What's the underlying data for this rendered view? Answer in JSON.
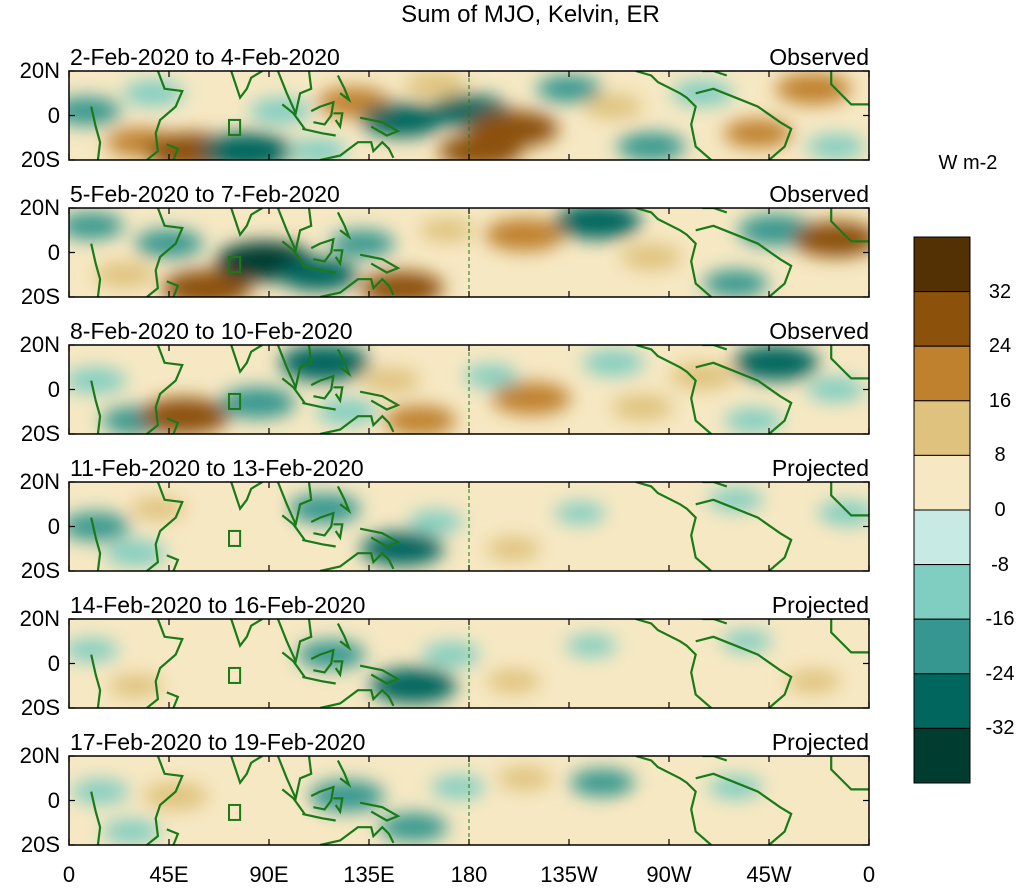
{
  "chart_data": {
    "type": "heatmap",
    "title": "Sum of MJO, Kelvin, ER",
    "xlabel": "",
    "ylabel": "",
    "x_ticks": [
      "0",
      "45E",
      "90E",
      "135E",
      "180",
      "135W",
      "90W",
      "45W",
      "0"
    ],
    "y_ticks": [
      "20N",
      "0",
      "20S"
    ],
    "xlim": [
      0,
      360
    ],
    "ylim": [
      -20,
      20
    ],
    "colorbar": {
      "units": "W m-2",
      "levels": [
        "32",
        "24",
        "16",
        "8",
        "0",
        "-8",
        "-16",
        "-24",
        "-32"
      ],
      "colors": [
        "#543005",
        "#8c510a",
        "#bf812d",
        "#dfc27d",
        "#f6e8c3",
        "#c7eae5",
        "#80cdc1",
        "#35978f",
        "#01665e",
        "#003c30"
      ]
    },
    "panels": [
      {
        "date_range": "2-Feb-2020 to 4-Feb-2020",
        "status": "Observed",
        "anomalies": [
          {
            "lon": 8,
            "lat": 2,
            "v": -18
          },
          {
            "lon": 38,
            "lat": 10,
            "v": -14
          },
          {
            "lon": 32,
            "lat": -12,
            "v": 18
          },
          {
            "lon": 55,
            "lat": -16,
            "v": 30
          },
          {
            "lon": 80,
            "lat": -16,
            "v": -30
          },
          {
            "lon": 95,
            "lat": 2,
            "v": -14
          },
          {
            "lon": 112,
            "lat": -16,
            "v": -12
          },
          {
            "lon": 128,
            "lat": 6,
            "v": 20
          },
          {
            "lon": 150,
            "lat": -2,
            "v": -26
          },
          {
            "lon": 165,
            "lat": 14,
            "v": 14
          },
          {
            "lon": 180,
            "lat": 2,
            "v": -24
          },
          {
            "lon": 200,
            "lat": -6,
            "v": 30
          },
          {
            "lon": 185,
            "lat": -16,
            "v": 26
          },
          {
            "lon": 225,
            "lat": 12,
            "v": -16
          },
          {
            "lon": 245,
            "lat": 4,
            "v": 12
          },
          {
            "lon": 262,
            "lat": -14,
            "v": -18
          },
          {
            "lon": 285,
            "lat": 10,
            "v": -14
          },
          {
            "lon": 310,
            "lat": -8,
            "v": 18
          },
          {
            "lon": 335,
            "lat": 12,
            "v": 22
          },
          {
            "lon": 345,
            "lat": -14,
            "v": -12
          }
        ]
      },
      {
        "date_range": "5-Feb-2020 to 7-Feb-2020",
        "status": "Observed",
        "anomalies": [
          {
            "lon": 10,
            "lat": 12,
            "v": -16
          },
          {
            "lon": 25,
            "lat": -10,
            "v": 14
          },
          {
            "lon": 45,
            "lat": 4,
            "v": -18
          },
          {
            "lon": 62,
            "lat": -16,
            "v": 30
          },
          {
            "lon": 88,
            "lat": -4,
            "v": -34
          },
          {
            "lon": 112,
            "lat": -10,
            "v": -24
          },
          {
            "lon": 132,
            "lat": 4,
            "v": -16
          },
          {
            "lon": 150,
            "lat": -16,
            "v": 26
          },
          {
            "lon": 170,
            "lat": 10,
            "v": 10
          },
          {
            "lon": 205,
            "lat": 8,
            "v": 24
          },
          {
            "lon": 238,
            "lat": 14,
            "v": -28
          },
          {
            "lon": 262,
            "lat": -2,
            "v": 14
          },
          {
            "lon": 300,
            "lat": -14,
            "v": -16
          },
          {
            "lon": 318,
            "lat": 10,
            "v": -22
          },
          {
            "lon": 345,
            "lat": 6,
            "v": 28
          }
        ]
      },
      {
        "date_range": "8-Feb-2020 to 10-Feb-2020",
        "status": "Observed",
        "anomalies": [
          {
            "lon": 12,
            "lat": 4,
            "v": -14
          },
          {
            "lon": 30,
            "lat": -14,
            "v": -18
          },
          {
            "lon": 52,
            "lat": -12,
            "v": 30
          },
          {
            "lon": 85,
            "lat": -6,
            "v": -22
          },
          {
            "lon": 115,
            "lat": 12,
            "v": -30
          },
          {
            "lon": 125,
            "lat": -10,
            "v": -14
          },
          {
            "lon": 145,
            "lat": 4,
            "v": 12
          },
          {
            "lon": 158,
            "lat": -14,
            "v": 20
          },
          {
            "lon": 190,
            "lat": 6,
            "v": -10
          },
          {
            "lon": 208,
            "lat": -4,
            "v": 24
          },
          {
            "lon": 245,
            "lat": 12,
            "v": -14
          },
          {
            "lon": 258,
            "lat": -8,
            "v": 14
          },
          {
            "lon": 285,
            "lat": 6,
            "v": 16
          },
          {
            "lon": 308,
            "lat": -14,
            "v": -12
          },
          {
            "lon": 318,
            "lat": 12,
            "v": -28
          },
          {
            "lon": 345,
            "lat": 0,
            "v": -12
          }
        ]
      },
      {
        "date_range": "11-Feb-2020 to 13-Feb-2020",
        "status": "Projected",
        "anomalies": [
          {
            "lon": 12,
            "lat": 0,
            "v": -18
          },
          {
            "lon": 30,
            "lat": -12,
            "v": -14
          },
          {
            "lon": 40,
            "lat": 8,
            "v": 10
          },
          {
            "lon": 80,
            "lat": 4,
            "v": 8
          },
          {
            "lon": 115,
            "lat": 8,
            "v": -20
          },
          {
            "lon": 150,
            "lat": -10,
            "v": -26
          },
          {
            "lon": 165,
            "lat": 2,
            "v": -10
          },
          {
            "lon": 200,
            "lat": -10,
            "v": 10
          },
          {
            "lon": 230,
            "lat": 6,
            "v": -8
          },
          {
            "lon": 265,
            "lat": -6,
            "v": 8
          },
          {
            "lon": 300,
            "lat": 12,
            "v": -10
          },
          {
            "lon": 330,
            "lat": -8,
            "v": 8
          },
          {
            "lon": 350,
            "lat": 6,
            "v": -12
          }
        ]
      },
      {
        "date_range": "14-Feb-2020 to 16-Feb-2020",
        "status": "Projected",
        "anomalies": [
          {
            "lon": 10,
            "lat": 6,
            "v": -10
          },
          {
            "lon": 30,
            "lat": -10,
            "v": 10
          },
          {
            "lon": 60,
            "lat": 4,
            "v": 8
          },
          {
            "lon": 118,
            "lat": 4,
            "v": -18
          },
          {
            "lon": 155,
            "lat": -10,
            "v": -28
          },
          {
            "lon": 172,
            "lat": 4,
            "v": -12
          },
          {
            "lon": 200,
            "lat": -8,
            "v": 10
          },
          {
            "lon": 235,
            "lat": 8,
            "v": -8
          },
          {
            "lon": 270,
            "lat": -10,
            "v": 8
          },
          {
            "lon": 305,
            "lat": 10,
            "v": -8
          },
          {
            "lon": 335,
            "lat": -8,
            "v": 10
          }
        ]
      },
      {
        "date_range": "17-Feb-2020 to 19-Feb-2020",
        "status": "Projected",
        "anomalies": [
          {
            "lon": 14,
            "lat": 4,
            "v": -12
          },
          {
            "lon": 28,
            "lat": -14,
            "v": -12
          },
          {
            "lon": 48,
            "lat": 2,
            "v": 16
          },
          {
            "lon": 90,
            "lat": -6,
            "v": 8
          },
          {
            "lon": 125,
            "lat": 2,
            "v": -22
          },
          {
            "lon": 155,
            "lat": -12,
            "v": -18
          },
          {
            "lon": 175,
            "lat": 6,
            "v": -10
          },
          {
            "lon": 205,
            "lat": 10,
            "v": 10
          },
          {
            "lon": 240,
            "lat": 8,
            "v": -16
          },
          {
            "lon": 262,
            "lat": -10,
            "v": 8
          },
          {
            "lon": 300,
            "lat": 6,
            "v": -10
          },
          {
            "lon": 335,
            "lat": -10,
            "v": 8
          }
        ]
      }
    ]
  }
}
